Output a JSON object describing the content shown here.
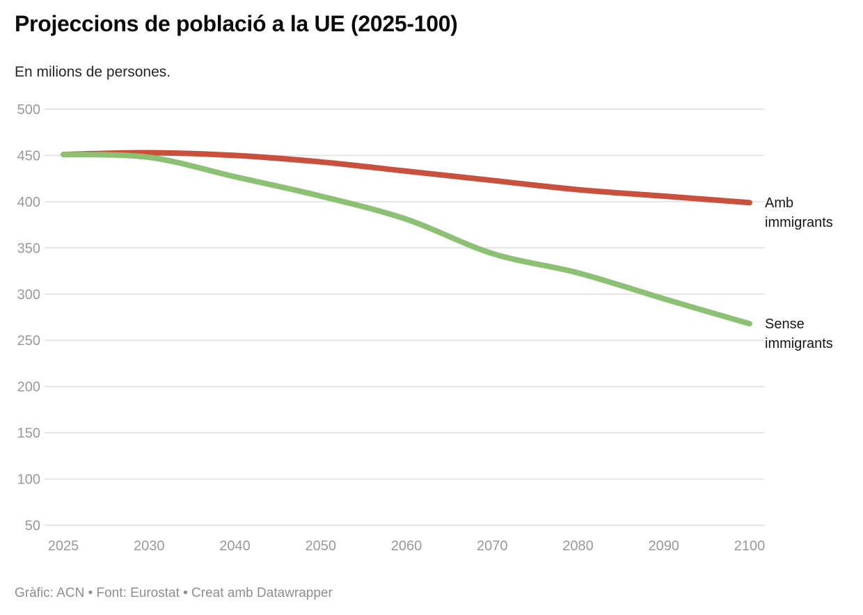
{
  "header": {
    "title": "Projeccions de població a la UE (2025-100)",
    "subtitle": "En milions de persones."
  },
  "chart_data": {
    "type": "line",
    "x_categories": [
      "2025",
      "2030",
      "2040",
      "2050",
      "2060",
      "2070",
      "2080",
      "2090",
      "2100"
    ],
    "series": [
      {
        "name": "Amb immigrants",
        "color": "#c8503c",
        "values": [
          451,
          453,
          450,
          443,
          433,
          423,
          413,
          406,
          399
        ]
      },
      {
        "name": "Sense immigrants",
        "color": "#8cc173",
        "values": [
          451,
          448,
          427,
          406,
          381,
          344,
          323,
          295,
          268
        ]
      }
    ],
    "title": "Projeccions de població a la UE (2025-100)",
    "xlabel": "",
    "ylabel": "",
    "ylim": [
      50,
      500
    ],
    "yticks": [
      50,
      100,
      150,
      200,
      250,
      300,
      350,
      400,
      450,
      500
    ],
    "grid": true,
    "legend_position": "direct-labels-right",
    "axis_label_color": "#999999",
    "gridline_color": "#e4e4e4",
    "line_width": 8
  },
  "footer": {
    "credit": "Gràfic: ACN • Font: Eurostat • Creat amb Datawrapper"
  }
}
